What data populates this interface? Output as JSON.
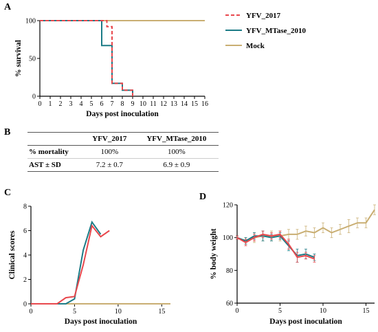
{
  "panels": {
    "a": "A",
    "b": "B",
    "c": "C",
    "d": "D"
  },
  "colors": {
    "yfv2017": "#e8474c",
    "mtase": "#1b7b86",
    "mock": "#c9ae72"
  },
  "chart_data": [
    {
      "type": "line",
      "panel": "A",
      "ylabel": "% survival",
      "xlabel": "Days post inoculation",
      "xlim": [
        0,
        16
      ],
      "ylim": [
        0,
        100
      ],
      "xticks": [
        0,
        1,
        2,
        3,
        4,
        5,
        6,
        7,
        8,
        9,
        10,
        11,
        12,
        13,
        14,
        15,
        16
      ],
      "yticks": [
        0,
        50,
        100
      ],
      "step": true,
      "legend_position": "right",
      "series": [
        {
          "name": "YFV_2017",
          "style": "dashed",
          "x": [
            0,
            6,
            6.5,
            7,
            8,
            9
          ],
          "y": [
            100,
            100,
            92,
            17,
            8,
            0
          ]
        },
        {
          "name": "YFV_MTase_2010",
          "style": "solid",
          "x": [
            0,
            6,
            7,
            8,
            9
          ],
          "y": [
            100,
            67,
            17,
            8,
            0
          ]
        },
        {
          "name": "Mock",
          "style": "solid",
          "x": [
            0,
            16
          ],
          "y": [
            100,
            100
          ]
        }
      ]
    },
    {
      "type": "table",
      "panel": "B",
      "columns": [
        "",
        "YFV_2017",
        "YFV_MTase_2010"
      ],
      "rows": [
        [
          "% mortality",
          "100%",
          "100%"
        ],
        [
          "AST ± SD",
          "7.2 ± 0.7",
          "6.9 ± 0.9"
        ]
      ]
    },
    {
      "type": "line",
      "panel": "C",
      "ylabel": "Clinical scores",
      "xlabel": "Days post inoculation",
      "xlim": [
        0,
        16
      ],
      "ylim": [
        0,
        8
      ],
      "xticks": [
        0,
        5,
        10,
        15
      ],
      "yticks": [
        0,
        2,
        4,
        6,
        8
      ],
      "series": [
        {
          "name": "YFV_2017",
          "x": [
            0,
            1,
            2,
            3,
            4,
            5,
            6,
            7,
            8,
            9
          ],
          "y": [
            0,
            0,
            0,
            0,
            0.5,
            0.6,
            3.2,
            6.4,
            5.5,
            6.0
          ]
        },
        {
          "name": "YFV_MTase_2010",
          "x": [
            0,
            1,
            2,
            3,
            4,
            5,
            6,
            7,
            8
          ],
          "y": [
            0,
            0,
            0,
            0,
            0,
            0.4,
            4.4,
            6.7,
            5.7
          ]
        },
        {
          "name": "Mock",
          "x": [
            0,
            16
          ],
          "y": [
            0,
            0
          ]
        }
      ]
    },
    {
      "type": "line",
      "panel": "D",
      "ylabel": "% body weight",
      "xlabel": "Days post inoculation",
      "xlim": [
        0,
        16
      ],
      "ylim": [
        60,
        120
      ],
      "xticks": [
        0,
        5,
        10,
        15
      ],
      "yticks": [
        60,
        80,
        100,
        120
      ],
      "error_bars": true,
      "series": [
        {
          "name": "YFV_2017",
          "x": [
            0,
            1,
            2,
            3,
            4,
            5,
            6,
            7,
            8,
            9
          ],
          "y": [
            100,
            97,
            100,
            102,
            101,
            102,
            96,
            88,
            89,
            87
          ],
          "err": [
            1,
            2,
            2,
            2,
            2,
            2,
            3,
            3,
            2,
            2
          ]
        },
        {
          "name": "YFV_MTase_2010",
          "x": [
            0,
            1,
            2,
            3,
            4,
            5,
            6,
            7,
            8,
            9
          ],
          "y": [
            100,
            98,
            101,
            101,
            100,
            101,
            95,
            89,
            90,
            88
          ],
          "err": [
            1,
            2,
            2,
            3,
            2,
            2,
            3,
            4,
            3,
            2
          ]
        },
        {
          "name": "Mock",
          "x": [
            0,
            1,
            2,
            3,
            4,
            5,
            6,
            7,
            8,
            9,
            10,
            11,
            12,
            13,
            14,
            15,
            16
          ],
          "y": [
            100,
            98,
            100,
            101,
            101,
            101,
            102,
            102,
            104,
            103,
            106,
            103,
            105,
            107,
            109,
            109,
            117
          ],
          "err": [
            1,
            2,
            3,
            3,
            3,
            3,
            3,
            3,
            3,
            3,
            3,
            3,
            3,
            4,
            3,
            3,
            3
          ]
        }
      ]
    }
  ]
}
